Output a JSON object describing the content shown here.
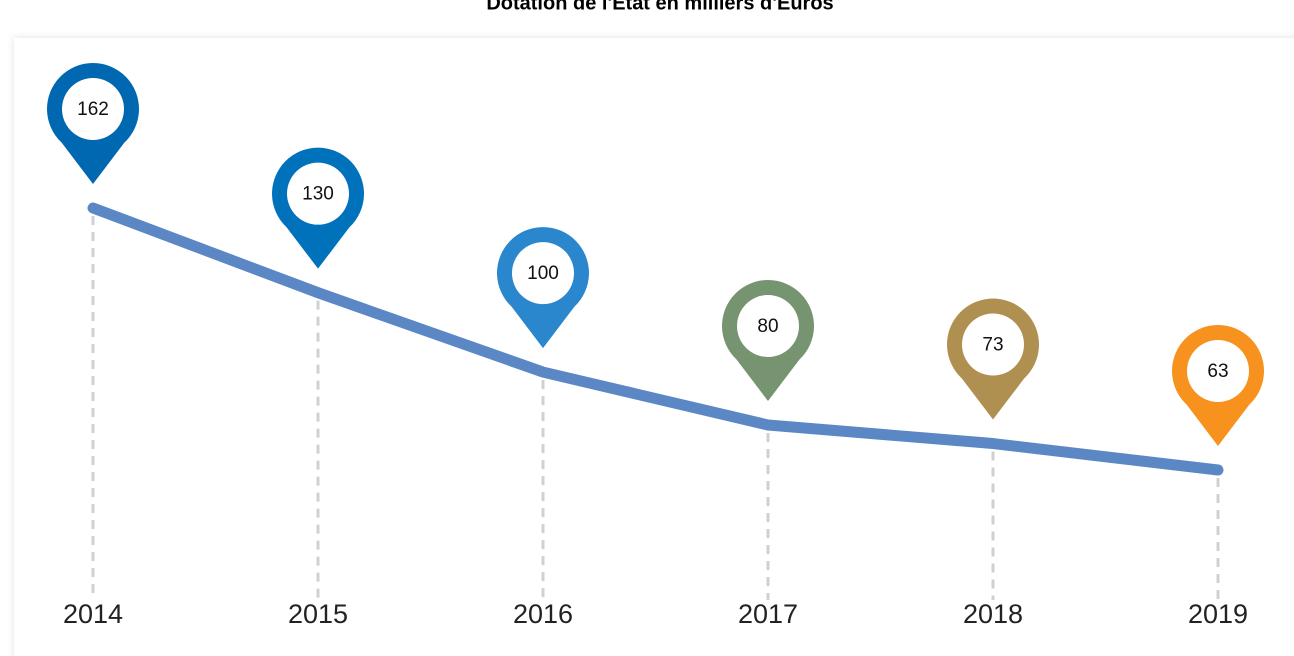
{
  "chart_data": {
    "type": "line",
    "title": "Dotation de l'Etat en milliers d'Euros",
    "categories": [
      "2014",
      "2015",
      "2016",
      "2017",
      "2018",
      "2019"
    ],
    "values": [
      162,
      130,
      100,
      80,
      73,
      63
    ],
    "color": "#5b87c5",
    "pin_colors": [
      "#0067b1",
      "#0072bc",
      "#2a87cd",
      "#76946f",
      "#b09050",
      "#f7921e"
    ]
  }
}
